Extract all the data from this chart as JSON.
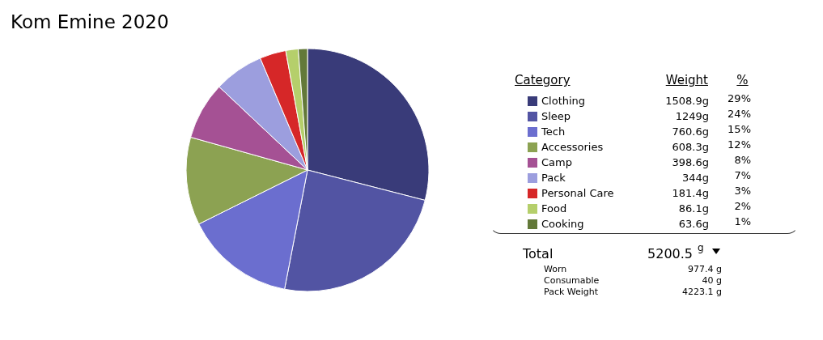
{
  "chart_data": {
    "type": "pie",
    "title": "Kom Emine 2020",
    "categories": [
      "Clothing",
      "Sleep",
      "Tech",
      "Accessories",
      "Camp",
      "Pack",
      "Personal Care",
      "Food",
      "Cooking"
    ],
    "values": [
      1508.9,
      1249,
      760.6,
      608.3,
      398.6,
      344,
      181.4,
      86.1,
      63.6
    ],
    "value_labels": [
      "1508.9g",
      "1249g",
      "760.6g",
      "608.3g",
      "398.6g",
      "344g",
      "181.4g",
      "86.1g",
      "63.6g"
    ],
    "colors": [
      "#393b79",
      "#5254a3",
      "#6b6ecf",
      "#8ca252",
      "#a55194",
      "#9c9ede",
      "#d62728",
      "#b5cf6b",
      "#637939"
    ],
    "legend": "right",
    "annotations": [
      "Category",
      "Weight",
      "%",
      "29%",
      "24%",
      "15%",
      "12%",
      "8%",
      "7%",
      "3%",
      "2%",
      "1%",
      "Total",
      "5200.5",
      "g",
      "Worn",
      "977.4 g",
      "Consumable",
      "40 g",
      "Pack Weight",
      "4223.1 g"
    ]
  }
}
